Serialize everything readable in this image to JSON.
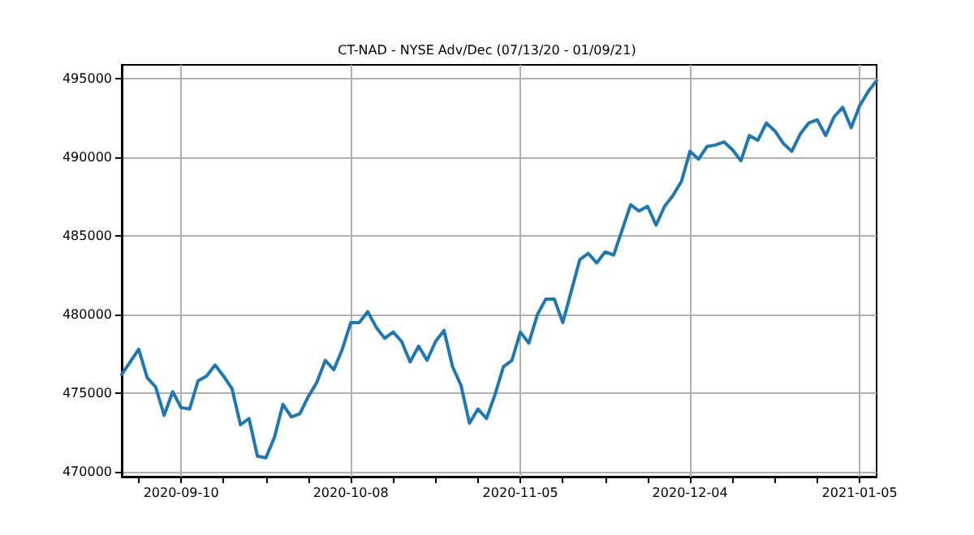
{
  "chart_data": {
    "type": "line",
    "title": "CT-NAD - NYSE Adv/Dec (07/13/20 - 01/09/21)",
    "categories": [
      null,
      null,
      null,
      null,
      null,
      null,
      null,
      "2020-09-10",
      null,
      null,
      null,
      null,
      null,
      null,
      null,
      null,
      null,
      null,
      null,
      null,
      null,
      null,
      null,
      null,
      null,
      null,
      null,
      "2020-10-08",
      null,
      null,
      null,
      null,
      null,
      null,
      null,
      null,
      null,
      null,
      null,
      null,
      null,
      null,
      null,
      null,
      null,
      null,
      null,
      "2020-11-05",
      null,
      null,
      null,
      null,
      null,
      null,
      null,
      null,
      null,
      null,
      null,
      null,
      null,
      null,
      null,
      null,
      null,
      null,
      null,
      "2020-12-04",
      null,
      null,
      null,
      null,
      null,
      null,
      null,
      null,
      null,
      null,
      null,
      null,
      null,
      null,
      null,
      null,
      null,
      null,
      null,
      "2021-01-05",
      null,
      null
    ],
    "series": [
      {
        "color": "#1f77b4",
        "values": [
          476200,
          477000,
          477800,
          476000,
          475400,
          473600,
          475100,
          474100,
          474000,
          475800,
          476100,
          476800,
          476100,
          475300,
          473000,
          473400,
          471000,
          470900,
          472200,
          474300,
          473500,
          473700,
          474800,
          475700,
          477100,
          476500,
          477800,
          479500,
          479500,
          480200,
          479200,
          478500,
          478900,
          478300,
          477000,
          478000,
          477100,
          478300,
          479000,
          476700,
          475500,
          473100,
          474000,
          473400,
          474900,
          476700,
          477100,
          478900,
          478200,
          480000,
          481000,
          481000,
          479500,
          481500,
          483500,
          483900,
          483300,
          484000,
          483800,
          485400,
          487000,
          486600,
          486900,
          485700,
          486900,
          487600,
          488500,
          490400,
          489900,
          490700,
          490800,
          491000,
          490500,
          489800,
          491400,
          491100,
          492200,
          491700,
          490900,
          490400,
          491500,
          492200,
          492400,
          491400,
          492600,
          493200,
          491900,
          493300,
          494200,
          494900
        ]
      }
    ],
    "ylim": [
      469700,
      495900
    ],
    "yticks": [
      470000,
      475000,
      480000,
      485000,
      490000,
      495000
    ],
    "grid": true,
    "marker": "none",
    "line_style": "solid"
  }
}
